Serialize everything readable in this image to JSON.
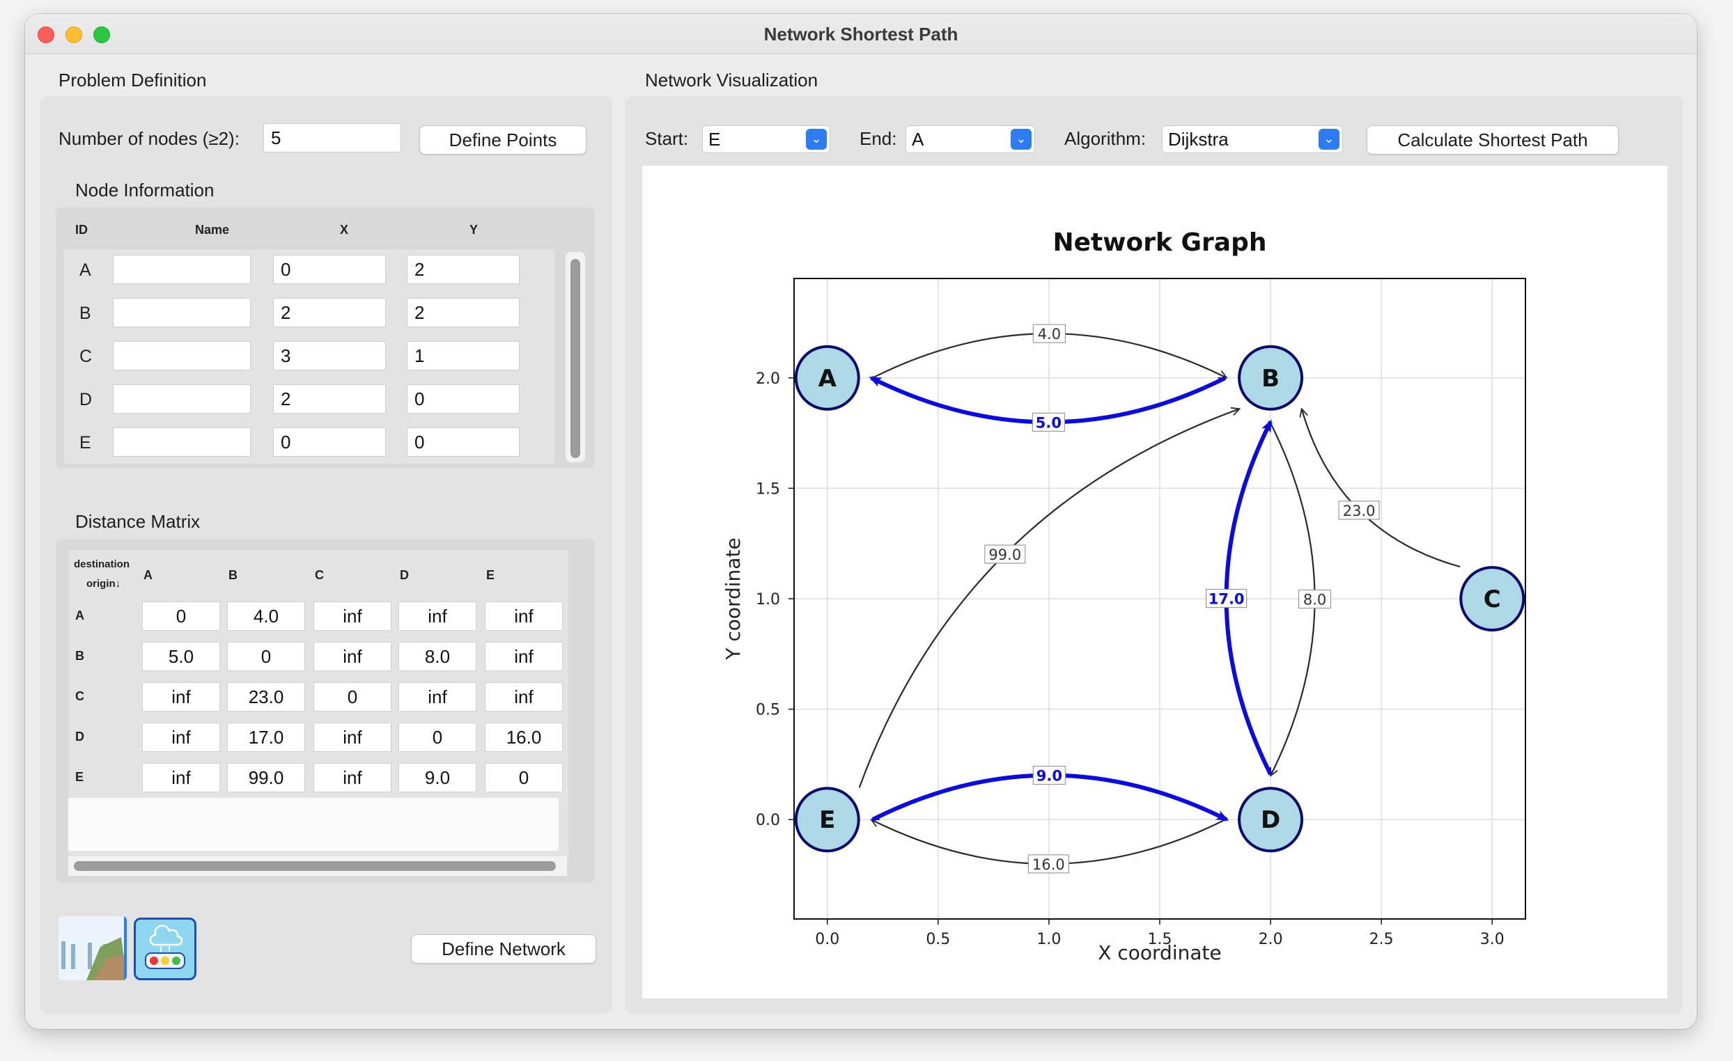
{
  "window": {
    "title": "Network Shortest Path"
  },
  "left": {
    "group_title": "Problem Definition",
    "num_nodes_label": "Number of nodes (≥2):",
    "num_nodes_value": "5",
    "define_points_label": "Define Points",
    "node_info_title": "Node Information",
    "node_table": {
      "headers": [
        "ID",
        "Name",
        "X",
        "Y"
      ],
      "rows": [
        {
          "id": "A",
          "name": "",
          "x": "0",
          "y": "2"
        },
        {
          "id": "B",
          "name": "",
          "x": "2",
          "y": "2"
        },
        {
          "id": "C",
          "name": "",
          "x": "3",
          "y": "1"
        },
        {
          "id": "D",
          "name": "",
          "x": "2",
          "y": "0"
        },
        {
          "id": "E",
          "name": "",
          "x": "0",
          "y": "0"
        }
      ]
    },
    "distance_title": "Distance Matrix",
    "distance_matrix": {
      "corner_top": "destination",
      "corner_bottom": "origin↓",
      "columns": [
        "A",
        "B",
        "C",
        "D",
        "E"
      ],
      "rows": [
        {
          "origin": "A",
          "values": [
            "0",
            "4.0",
            "inf",
            "inf",
            "inf"
          ]
        },
        {
          "origin": "B",
          "values": [
            "5.0",
            "0",
            "inf",
            "8.0",
            "inf"
          ]
        },
        {
          "origin": "C",
          "values": [
            "inf",
            "23.0",
            "0",
            "inf",
            "inf"
          ]
        },
        {
          "origin": "D",
          "values": [
            "inf",
            "17.0",
            "inf",
            "0",
            "16.0"
          ]
        },
        {
          "origin": "E",
          "values": [
            "inf",
            "99.0",
            "inf",
            "9.0",
            "0"
          ]
        }
      ]
    },
    "define_network_label": "Define Network"
  },
  "right": {
    "group_title": "Network Visualization",
    "start_label": "Start:",
    "start_value": "E",
    "end_label": "End:",
    "end_value": "A",
    "algorithm_label": "Algorithm:",
    "algorithm_value": "Dijkstra",
    "calculate_label": "Calculate Shortest Path"
  },
  "colors": {
    "path_edge": "#0a0ae8",
    "normal_edge": "#2a2a2a",
    "node_fill": "#add8e6",
    "node_stroke": "#0a0a6e"
  },
  "chart_data": {
    "type": "scatter",
    "title": "Network Graph",
    "xlabel": "X coordinate",
    "ylabel": "Y coordinate",
    "xlim": [
      -0.15,
      3.15
    ],
    "ylim": [
      -0.45,
      2.45
    ],
    "xticks": [
      "0.0",
      "0.5",
      "1.0",
      "1.5",
      "2.0",
      "2.5",
      "3.0"
    ],
    "yticks": [
      "0.0",
      "0.5",
      "1.0",
      "1.5",
      "2.0"
    ],
    "grid": true,
    "nodes": [
      {
        "label": "A",
        "x": 0,
        "y": 2
      },
      {
        "label": "B",
        "x": 2,
        "y": 2
      },
      {
        "label": "C",
        "x": 3,
        "y": 1
      },
      {
        "label": "D",
        "x": 2,
        "y": 0
      },
      {
        "label": "E",
        "x": 0,
        "y": 0
      }
    ],
    "edges": [
      {
        "from": "A",
        "to": "B",
        "weight": "4.0",
        "on_path": false
      },
      {
        "from": "B",
        "to": "A",
        "weight": "5.0",
        "on_path": true
      },
      {
        "from": "B",
        "to": "D",
        "weight": "8.0",
        "on_path": false
      },
      {
        "from": "C",
        "to": "B",
        "weight": "23.0",
        "on_path": false
      },
      {
        "from": "D",
        "to": "B",
        "weight": "17.0",
        "on_path": true
      },
      {
        "from": "D",
        "to": "E",
        "weight": "16.0",
        "on_path": false
      },
      {
        "from": "E",
        "to": "B",
        "weight": "99.0",
        "on_path": false
      },
      {
        "from": "E",
        "to": "D",
        "weight": "9.0",
        "on_path": true
      }
    ]
  }
}
